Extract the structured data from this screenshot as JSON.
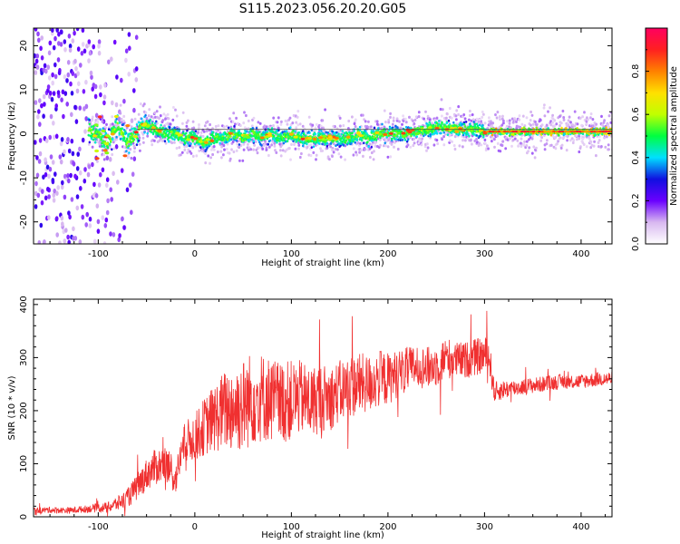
{
  "figure_title": "S115.2023.056.20.20.G05",
  "chart_data": [
    {
      "type": "heatmap",
      "xlabel": "Height of straight line (km)",
      "ylabel": "Frequency (Hz)",
      "xlim": [
        -167,
        432
      ],
      "ylim": [
        -25,
        24
      ],
      "xticks": [
        -100,
        0,
        100,
        200,
        300,
        400
      ],
      "yticks": [
        -20,
        -10,
        0,
        10,
        20
      ],
      "colorbar": {
        "label": "Normalized spectral amplitude",
        "range": [
          0,
          1
        ],
        "ticks": [
          0.0,
          0.2,
          0.4,
          0.6,
          0.8
        ],
        "colors": [
          "#ffffff",
          "#d8b8f0",
          "#6a00ff",
          "#1010e0",
          "#00e0ff",
          "#00ff40",
          "#c0ff00",
          "#ffe000",
          "#ff8000",
          "#ff2020",
          "#ff0060"
        ]
      },
      "ridge": {
        "x": [
          -110,
          -100,
          -90,
          -80,
          -70,
          -60,
          -55,
          -50,
          -40,
          -30,
          -20,
          -10,
          0,
          10,
          20,
          30,
          40,
          50,
          60,
          70,
          80,
          90,
          100,
          110,
          120,
          130,
          140,
          150,
          160,
          170,
          180,
          190,
          200,
          210,
          220,
          230,
          240,
          250,
          260,
          270,
          280,
          290,
          300,
          320,
          340,
          360,
          380,
          400,
          432
        ],
        "freq": [
          1,
          0,
          -2,
          2,
          -2,
          0,
          2,
          2,
          1,
          0,
          0,
          -1,
          -1,
          -2,
          -1,
          -1,
          0,
          -1,
          0,
          -1,
          0,
          -1,
          0,
          -1,
          -1,
          -1,
          -1,
          -1,
          -1,
          0,
          -1,
          0,
          0,
          0,
          0,
          0.5,
          1,
          1.5,
          1.5,
          1,
          1,
          1,
          0.5,
          0.5,
          0.5,
          0.5,
          0.5,
          0.5,
          0.5
        ]
      }
    },
    {
      "type": "line",
      "xlabel": "Height of straight line (km)",
      "ylabel": "SNR (10 * v/v)",
      "xlim": [
        -167,
        432
      ],
      "ylim": [
        0,
        410
      ],
      "xticks": [
        -100,
        0,
        100,
        200,
        300,
        400
      ],
      "yticks": [
        0,
        100,
        200,
        300,
        400
      ],
      "color": "#f03030",
      "series": [
        {
          "x": [
            -167,
            -150,
            -130,
            -110,
            -90,
            -80,
            -70,
            -60,
            -50,
            -40,
            -30,
            -20,
            -15,
            -10,
            0,
            10,
            20,
            30,
            40,
            50,
            60,
            70,
            80,
            90,
            100,
            110,
            120,
            130,
            140,
            150,
            160,
            170,
            180,
            190,
            200,
            210,
            220,
            230,
            240,
            250,
            260,
            270,
            280,
            290,
            300,
            305,
            310,
            320,
            340,
            360,
            380,
            400,
            420,
            432
          ],
          "y": [
            12,
            13,
            12,
            15,
            18,
            25,
            35,
            55,
            80,
            95,
            100,
            70,
            110,
            140,
            150,
            170,
            185,
            200,
            205,
            210,
            225,
            225,
            220,
            215,
            220,
            225,
            215,
            225,
            225,
            235,
            245,
            250,
            250,
            260,
            260,
            270,
            275,
            285,
            280,
            285,
            300,
            295,
            295,
            300,
            305,
            300,
            235,
            240,
            245,
            250,
            255,
            255,
            260,
            260
          ],
          "amp": [
            6,
            6,
            6,
            7,
            10,
            14,
            18,
            25,
            30,
            35,
            35,
            30,
            35,
            40,
            45,
            55,
            65,
            75,
            85,
            90,
            90,
            85,
            80,
            80,
            75,
            70,
            70,
            65,
            60,
            60,
            60,
            60,
            55,
            55,
            50,
            45,
            45,
            40,
            40,
            40,
            40,
            35,
            35,
            35,
            35,
            35,
            20,
            18,
            15,
            15,
            14,
            14,
            14,
            14
          ]
        }
      ]
    }
  ]
}
